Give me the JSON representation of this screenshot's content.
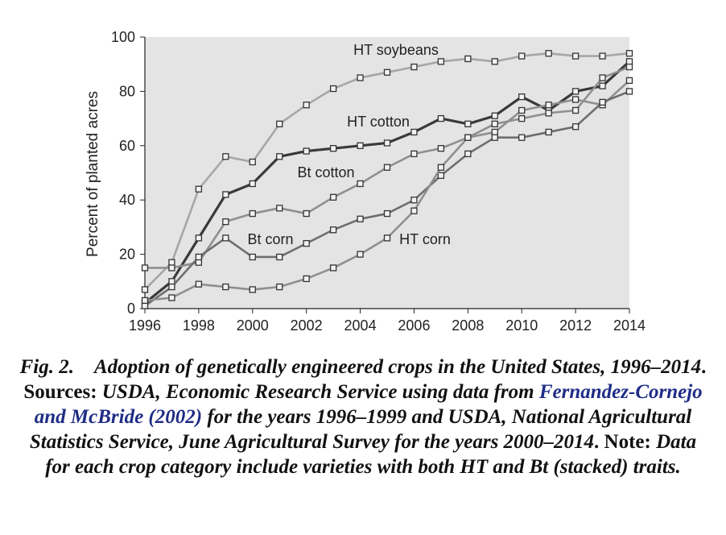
{
  "chart_data": {
    "type": "line",
    "ylabel": "Percent of planted acres",
    "xlabel": "",
    "xlim": [
      1996,
      2014
    ],
    "ylim": [
      0,
      100
    ],
    "xticks": [
      "1996",
      "1998",
      "2000",
      "2002",
      "2004",
      "2006",
      "2008",
      "2010",
      "2012",
      "2014"
    ],
    "yticks": [
      "0",
      "20",
      "40",
      "60",
      "80",
      "100"
    ],
    "x": [
      1996,
      1997,
      1998,
      1999,
      2000,
      2001,
      2002,
      2003,
      2004,
      2005,
      2006,
      2007,
      2008,
      2009,
      2010,
      2011,
      2012,
      2013,
      2014
    ],
    "grid": false,
    "series": [
      {
        "name": "HT soybeans",
        "color": "#a6a6a6",
        "values": [
          7,
          17,
          44,
          56,
          54,
          68,
          75,
          81,
          85,
          87,
          89,
          91,
          92,
          91,
          93,
          94,
          93,
          93,
          94
        ]
      },
      {
        "name": "HT cotton",
        "color": "#3a3a3a",
        "values": [
          2,
          10,
          26,
          42,
          46,
          56,
          58,
          59,
          60,
          61,
          65,
          70,
          68,
          71,
          78,
          73,
          80,
          82,
          91
        ]
      },
      {
        "name": "Bt cotton",
        "color": "#8f8f8f",
        "values": [
          15,
          15,
          17,
          32,
          35,
          37,
          35,
          41,
          46,
          52,
          57,
          59,
          63,
          65,
          73,
          75,
          77,
          75,
          84
        ]
      },
      {
        "name": "Bt corn",
        "color": "#6e6e6e",
        "values": [
          1,
          8,
          19,
          26,
          19,
          19,
          24,
          29,
          33,
          35,
          40,
          49,
          57,
          63,
          63,
          65,
          67,
          76,
          80
        ]
      },
      {
        "name": "HT corn",
        "color": "#8f8f8f",
        "values": [
          3,
          4,
          9,
          8,
          7,
          8,
          11,
          15,
          20,
          26,
          36,
          52,
          63,
          68,
          70,
          72,
          73,
          85,
          89
        ]
      }
    ],
    "annotations": [
      {
        "text": "HT soybeans",
        "series": "HT soybeans"
      },
      {
        "text": "HT cotton",
        "series": "HT cotton"
      },
      {
        "text": "Bt cotton",
        "series": "Bt cotton"
      },
      {
        "text": "Bt corn",
        "series": "Bt corn"
      },
      {
        "text": "HT corn",
        "series": "HT corn"
      }
    ]
  },
  "caption": {
    "fig_label": "Fig. 2.",
    "title": "Adoption of genetically engineered crops in the United States, 1996–2014",
    "title_end": ".",
    "sources_label": "Sources:",
    "sources_text": " USDA, Economic Research Service using data from",
    "reference": "Fernandez-Cornejo and McBride (2002)",
    "sources_text2": " for the years 1996–1999 and USDA, National Agricultural Statistics Service, June Agricultural Survey for the years 2000–2014",
    "sources_end": ".",
    "note_label": "Note:",
    "note_text": " Data for each crop category include varieties with both HT and Bt (stacked) traits."
  }
}
